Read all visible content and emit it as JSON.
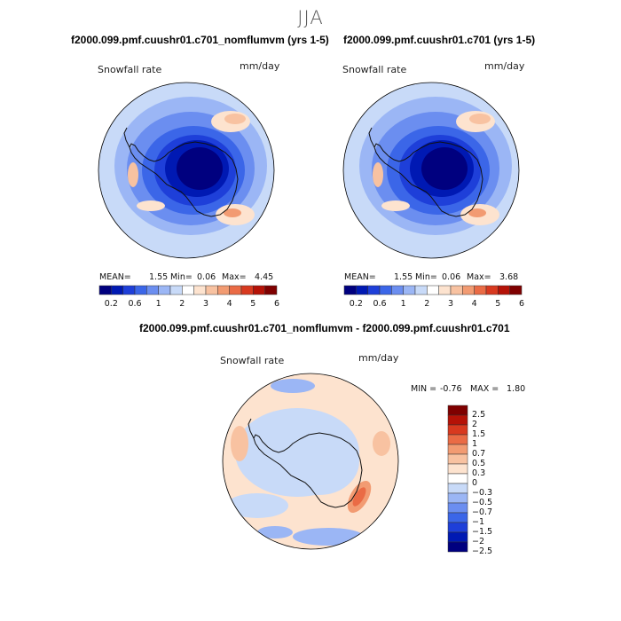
{
  "figure": {
    "season": "JJA",
    "bottom_title": "f2000.099.pmf.cuushr01.c701_nomflumvm - f2000.099.pmf.cuushr01.c701"
  },
  "colors": {
    "seq_scale": [
      "#00007f",
      "#0019b3",
      "#1e3fd9",
      "#3b66e8",
      "#6b8ef0",
      "#9bb6f5",
      "#c8daf8",
      "#ffffff",
      "#fde3cf",
      "#f8c2a1",
      "#f29b72",
      "#ea6b45",
      "#d8391f",
      "#b51207",
      "#7f0000"
    ],
    "diff_scale": [
      "#7f0000",
      "#b51207",
      "#d8391f",
      "#ea6b45",
      "#f29b72",
      "#f8c2a1",
      "#fde3cf",
      "#ffffff",
      "#c8daf8",
      "#9bb6f5",
      "#6b8ef0",
      "#3b66e8",
      "#1e3fd9",
      "#0019b3",
      "#00007f"
    ],
    "coast": "#111111"
  },
  "chart_data": [
    {
      "type": "heatmap",
      "title": "f2000.099.pmf.cuushr01.c701_nomflumvm (yrs 1-5)",
      "field": "Snowfall rate",
      "units": "mm/day",
      "projection": "south polar stereographic",
      "stats": {
        "mean_label": "MEAN=",
        "mean": "1.55",
        "min_label": "Min=",
        "min": "0.06",
        "max_label": "Max=",
        "max": "4.45"
      },
      "colorbar_ticks": [
        "0.2",
        "0.6",
        "1",
        "2",
        "3",
        "4",
        "5",
        "6"
      ]
    },
    {
      "type": "heatmap",
      "title": "f2000.099.pmf.cuushr01.c701 (yrs 1-5)",
      "field": "Snowfall rate",
      "units": "mm/day",
      "projection": "south polar stereographic",
      "stats": {
        "mean_label": "MEAN=",
        "mean": "1.55",
        "min_label": "Min=",
        "min": "0.06",
        "max_label": "Max=",
        "max": "3.68"
      },
      "colorbar_ticks": [
        "0.2",
        "0.6",
        "1",
        "2",
        "3",
        "4",
        "5",
        "6"
      ]
    },
    {
      "type": "heatmap",
      "title": "f2000.099.pmf.cuushr01.c701_nomflumvm - f2000.099.pmf.cuushr01.c701",
      "field": "Snowfall rate",
      "units": "mm/day",
      "projection": "south polar stereographic",
      "stats": {
        "min_label": "MIN =",
        "min": "-0.76",
        "max_label": "MAX =",
        "max": "1.80"
      },
      "colorbar_ticks": [
        "2.5",
        "2",
        "1.5",
        "1",
        "0.7",
        "0.5",
        "0.3",
        "0",
        "−0.3",
        "−0.5",
        "−0.7",
        "−1",
        "−1.5",
        "−2",
        "−2.5"
      ]
    }
  ]
}
